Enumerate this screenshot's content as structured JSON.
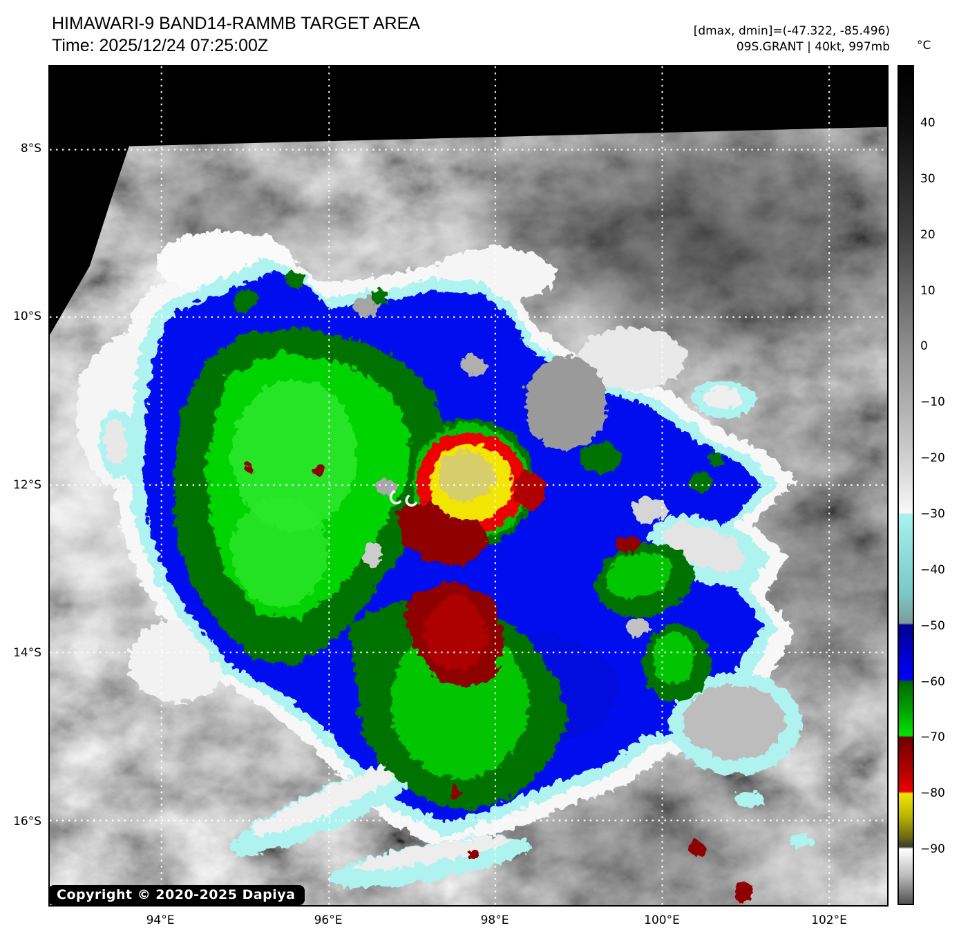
{
  "header": {
    "title": "HIMAWARI-9 BAND14-RAMMB TARGET AREA",
    "time_label": "Time: 2025/12/24 07:25:00Z",
    "dmax_dmin_label": "[dmax, dmin]=(-47.322, -85.496)",
    "storm_label": "09S.GRANT | 40kt, 997mb"
  },
  "map": {
    "copyright": "Copyright © 2020-2025 Dapiya",
    "x_axis_labels": [
      "94°E",
      "96°E",
      "98°E",
      "100°E",
      "102°E"
    ],
    "y_axis_labels": [
      "8°S",
      "10°S",
      "12°S",
      "14°S",
      "16°S"
    ],
    "grid_style": "white dotted"
  },
  "colorbar": {
    "unit_label": "°C",
    "tick_labels": [
      "40",
      "30",
      "20",
      "10",
      "0",
      "−10",
      "−20",
      "−30",
      "−40",
      "−50",
      "−60",
      "−70",
      "−80",
      "−90"
    ],
    "stops": [
      [
        0,
        "#000000"
      ],
      [
        7,
        "#0d0d0d"
      ],
      [
        20,
        "#3f3f3f"
      ],
      [
        33.5,
        "#8e8e8e"
      ],
      [
        45,
        "#c6c6c6"
      ],
      [
        52,
        "#efefef"
      ],
      [
        53.3,
        "#fafafa"
      ],
      [
        53.5,
        "#a9f2ef"
      ],
      [
        58,
        "#90dedb"
      ],
      [
        63,
        "#79c8c6"
      ],
      [
        66.5,
        "#7f9b99"
      ],
      [
        66.7,
        "#000091"
      ],
      [
        70,
        "#0000c8"
      ],
      [
        73.2,
        "#0000fe"
      ],
      [
        73.5,
        "#006a00"
      ],
      [
        77,
        "#00a400"
      ],
      [
        79.9,
        "#00e400"
      ],
      [
        80.15,
        "#6e0000"
      ],
      [
        84,
        "#b20000"
      ],
      [
        86.6,
        "#ee0000"
      ],
      [
        86.85,
        "#eee600"
      ],
      [
        89.5,
        "#bdb400"
      ],
      [
        92,
        "#6f6b12"
      ],
      [
        93.2,
        "#3a3a2a"
      ],
      [
        93.45,
        "#ffffff"
      ],
      [
        96.5,
        "#bfbfbf"
      ],
      [
        100,
        "#515151"
      ]
    ]
  },
  "palette": {
    "blue": "#0510ee",
    "navy": "#0007c0",
    "green_dark": "#007200",
    "green": "#00d400",
    "green_bright": "#2fe82f",
    "red": "#ee0000",
    "red_dark": "#8f0000",
    "yellow": "#f2e600",
    "khaki": "#d2c87e",
    "cyan": "#aef3ef",
    "cloud_gray": "#8a8a8a"
  },
  "chart_data": {
    "type": "heatmap",
    "title": "HIMAWARI-9 BAND14-RAMMB TARGET AREA",
    "subtitle": "Time: 2025/12/24 07:25:00Z",
    "satellite": "HIMAWARI-9",
    "band": "BAND14",
    "source_label": "RAMMB TARGET AREA",
    "x_axis": {
      "label_ticks": [
        "94°E",
        "96°E",
        "98°E",
        "100°E",
        "102°E"
      ],
      "range_deg_east": [
        92.7,
        102.7
      ]
    },
    "y_axis": {
      "label_ticks": [
        "8°S",
        "10°S",
        "12°S",
        "14°S",
        "16°S"
      ],
      "range_deg_south": [
        7.0,
        17.0
      ]
    },
    "colorbar": {
      "unit": "°C",
      "range_c": [
        50,
        -100
      ],
      "ticks_c": [
        40,
        30,
        20,
        10,
        0,
        -10,
        -20,
        -30,
        -40,
        -50,
        -60,
        -70,
        -80,
        -90
      ]
    },
    "annotations": {
      "dmax_c": -47.322,
      "dmin_c": -85.496,
      "storm_id": "09S",
      "storm_name": "GRANT",
      "intensity_kt": 40,
      "pressure_mb": 997,
      "storm_center_marker": {
        "lon_e": 96.9,
        "lat_s": 12.2
      },
      "coldest_cloud_tops": {
        "lon_e": 97.7,
        "lat_s": 11.9,
        "approx_temp_c": -85
      }
    },
    "grid": "dotted white graticule every 2 degrees",
    "legend_position": "right vertical colorbar",
    "copyright": "Copyright © 2020-2025 Dapiya"
  }
}
